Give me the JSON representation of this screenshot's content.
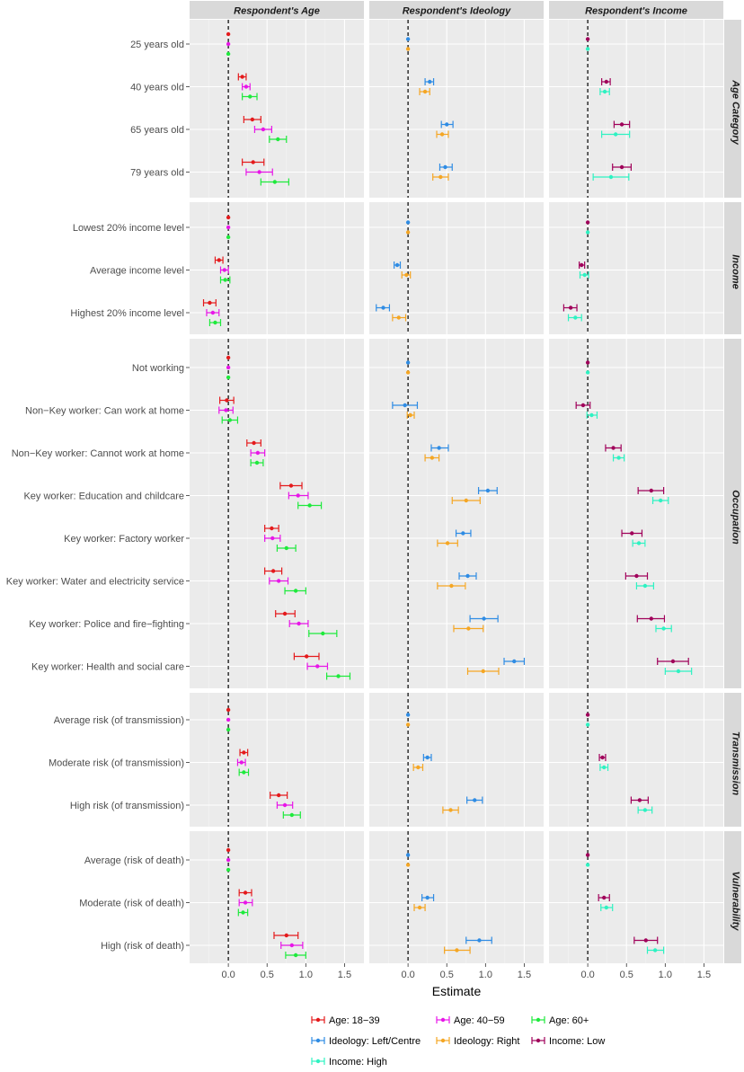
{
  "chart_data": {
    "type": "scatter",
    "subtype": "coefficient plot with horizontal error bars (faceted grid)",
    "xlabel": "Estimate",
    "x_ticks": [
      "0.0",
      "0.5",
      "1.0",
      "1.5"
    ],
    "x_tick_values": [
      0,
      0.5,
      1,
      1.5
    ],
    "xlim": [
      -0.5,
      1.75
    ],
    "columns": [
      "Respondent's Age",
      "Respondent's Ideology",
      "Respondent's Income"
    ],
    "reference_line": 0,
    "colors": {
      "Age: 18−39": "#e41a1c",
      "Age: 40−59": "#e816e8",
      "Age: 60+": "#1eea3c",
      "Ideology: Left/Centre": "#2f8ce4",
      "Ideology: Right": "#f5a623",
      "Income: High": "#2ef2c2",
      "Income: Low": "#a0005a"
    },
    "legend": {
      "position": "bottom",
      "entries": [
        "Age: 18−39",
        "Age: 40−59",
        "Age: 60+",
        "Ideology: Left/Centre",
        "Ideology: Right",
        "Income: Low",
        "Income: High"
      ]
    },
    "series_by_column": [
      [
        "Age: 18−39",
        "Age: 40−59",
        "Age: 60+"
      ],
      [
        "Ideology: Left/Centre",
        "Ideology: Right"
      ],
      [
        "Income: Low",
        "Income: High"
      ]
    ],
    "rows": [
      {
        "name": "Age Category",
        "levels": [
          "25 years old",
          "40 years old",
          "65 years old",
          "79 years old"
        ],
        "estimates": {
          "Age: 60+": [
            [
              0,
              0,
              0
            ],
            [
              0.28,
              0.18,
              0.37
            ],
            [
              0.64,
              0.53,
              0.75
            ],
            [
              0.6,
              0.42,
              0.78
            ]
          ],
          "Age: 40−59": [
            [
              0,
              0,
              0
            ],
            [
              0.23,
              0.18,
              0.28
            ],
            [
              0.45,
              0.34,
              0.56
            ],
            [
              0.4,
              0.23,
              0.57
            ]
          ],
          "Age: 18−39": [
            [
              0,
              0,
              0
            ],
            [
              0.18,
              0.13,
              0.23
            ],
            [
              0.31,
              0.2,
              0.42
            ],
            [
              0.32,
              0.18,
              0.46
            ]
          ],
          "Ideology: Right": [
            [
              0,
              0,
              0
            ],
            [
              0.22,
              0.15,
              0.28
            ],
            [
              0.44,
              0.37,
              0.52
            ],
            [
              0.42,
              0.32,
              0.52
            ]
          ],
          "Ideology: Left/Centre": [
            [
              0,
              0,
              0
            ],
            [
              0.28,
              0.22,
              0.33
            ],
            [
              0.5,
              0.43,
              0.58
            ],
            [
              0.48,
              0.41,
              0.57
            ]
          ],
          "Income: High": [
            [
              0,
              0,
              0
            ],
            [
              0.22,
              0.16,
              0.28
            ],
            [
              0.36,
              0.18,
              0.54
            ],
            [
              0.3,
              0.07,
              0.53
            ]
          ],
          "Income: Low": [
            [
              0,
              0,
              0
            ],
            [
              0.24,
              0.18,
              0.29
            ],
            [
              0.44,
              0.34,
              0.54
            ],
            [
              0.44,
              0.32,
              0.56
            ]
          ]
        }
      },
      {
        "name": "Income",
        "levels": [
          "Lowest 20% income level",
          "Average income level",
          "Highest 20% income level"
        ],
        "estimates": {
          "Age: 60+": [
            [
              0,
              0,
              0
            ],
            [
              -0.04,
              -0.1,
              0.02
            ],
            [
              -0.17,
              -0.24,
              -0.1
            ]
          ],
          "Age: 40−59": [
            [
              0,
              0,
              0
            ],
            [
              -0.05,
              -0.1,
              0
            ],
            [
              -0.2,
              -0.28,
              -0.12
            ]
          ],
          "Age: 18−39": [
            [
              0,
              0,
              0
            ],
            [
              -0.12,
              -0.17,
              -0.07
            ],
            [
              -0.24,
              -0.32,
              -0.16
            ]
          ],
          "Ideology: Right": [
            [
              0,
              0,
              0
            ],
            [
              -0.02,
              -0.08,
              0.03
            ],
            [
              -0.12,
              -0.2,
              -0.03
            ]
          ],
          "Ideology: Left/Centre": [
            [
              0,
              0,
              0
            ],
            [
              -0.14,
              -0.18,
              -0.1
            ],
            [
              -0.32,
              -0.41,
              -0.24
            ]
          ],
          "Income: High": [
            [
              0,
              0,
              0
            ],
            [
              -0.04,
              -0.1,
              0.01
            ],
            [
              -0.16,
              -0.25,
              -0.08
            ]
          ],
          "Income: Low": [
            [
              0,
              0,
              0
            ],
            [
              -0.08,
              -0.11,
              -0.04
            ],
            [
              -0.22,
              -0.31,
              -0.14
            ]
          ]
        }
      },
      {
        "name": "Occupation",
        "levels": [
          "Not working",
          "Non−Key worker: Can work at home",
          "Non−Key worker: Cannot work at home",
          "Key worker: Education and childcare",
          "Key worker: Factory worker",
          "Key worker: Water and electricity service",
          "Key worker: Police and fire−fighting",
          "Key worker: Health and social care"
        ],
        "estimates": {
          "Age: 60+": [
            [
              0,
              0,
              0
            ],
            [
              0.02,
              -0.08,
              0.12
            ],
            [
              0.37,
              0.29,
              0.45
            ],
            [
              1.05,
              0.9,
              1.2
            ],
            [
              0.75,
              0.63,
              0.87
            ],
            [
              0.87,
              0.73,
              1
            ],
            [
              1.22,
              1.04,
              1.4
            ],
            [
              1.42,
              1.27,
              1.57
            ]
          ],
          "Age: 40−59": [
            [
              0,
              0,
              0
            ],
            [
              -0.03,
              -0.12,
              0.06
            ],
            [
              0.38,
              0.29,
              0.47
            ],
            [
              0.9,
              0.78,
              1.03
            ],
            [
              0.57,
              0.47,
              0.67
            ],
            [
              0.65,
              0.53,
              0.77
            ],
            [
              0.91,
              0.79,
              1.03
            ],
            [
              1.15,
              1.02,
              1.28
            ]
          ],
          "Age: 18−39": [
            [
              0,
              0,
              0
            ],
            [
              -0.02,
              -0.11,
              0.07
            ],
            [
              0.33,
              0.24,
              0.42
            ],
            [
              0.81,
              0.67,
              0.95
            ],
            [
              0.56,
              0.47,
              0.65
            ],
            [
              0.58,
              0.47,
              0.69
            ],
            [
              0.73,
              0.61,
              0.86
            ],
            [
              1.01,
              0.85,
              1.17
            ]
          ],
          "Ideology: Right": [
            [
              0,
              0,
              0
            ],
            [
              0.03,
              -0.01,
              0.08
            ],
            [
              0.31,
              0.22,
              0.4
            ],
            [
              0.75,
              0.57,
              0.93
            ],
            [
              0.51,
              0.38,
              0.64
            ],
            [
              0.56,
              0.38,
              0.74
            ],
            [
              0.78,
              0.59,
              0.97
            ],
            [
              0.97,
              0.77,
              1.17
            ]
          ],
          "Ideology: Left/Centre": [
            [
              0,
              0,
              0
            ],
            [
              -0.04,
              -0.2,
              0.12
            ],
            [
              0.4,
              0.3,
              0.52
            ],
            [
              1.03,
              0.91,
              1.15
            ],
            [
              0.71,
              0.62,
              0.81
            ],
            [
              0.77,
              0.66,
              0.88
            ],
            [
              0.98,
              0.8,
              1.16
            ],
            [
              1.37,
              1.24,
              1.5
            ]
          ],
          "Income: High": [
            [
              0,
              0,
              0
            ],
            [
              0.05,
              -0.01,
              0.12
            ],
            [
              0.4,
              0.33,
              0.47
            ],
            [
              0.94,
              0.84,
              1.04
            ],
            [
              0.66,
              0.58,
              0.74
            ],
            [
              0.74,
              0.63,
              0.85
            ],
            [
              0.98,
              0.88,
              1.08
            ],
            [
              1.17,
              1,
              1.34
            ]
          ],
          "Income: Low": [
            [
              0,
              0,
              0
            ],
            [
              -0.06,
              -0.15,
              0.03
            ],
            [
              0.33,
              0.23,
              0.43
            ],
            [
              0.82,
              0.65,
              0.98
            ],
            [
              0.57,
              0.44,
              0.7
            ],
            [
              0.63,
              0.49,
              0.77
            ],
            [
              0.82,
              0.64,
              0.99
            ],
            [
              1.1,
              0.9,
              1.3
            ]
          ]
        }
      },
      {
        "name": "Transmission",
        "levels": [
          "Average risk (of transmission)",
          "Moderate risk (of transmission)",
          "High risk (of transmission)"
        ],
        "estimates": {
          "Age: 60+": [
            [
              0,
              0,
              0
            ],
            [
              0.2,
              0.14,
              0.26
            ],
            [
              0.82,
              0.71,
              0.93
            ]
          ],
          "Age: 40−59": [
            [
              0,
              0,
              0
            ],
            [
              0.17,
              0.12,
              0.22
            ],
            [
              0.73,
              0.63,
              0.83
            ]
          ],
          "Age: 18−39": [
            [
              0,
              0,
              0
            ],
            [
              0.2,
              0.15,
              0.25
            ],
            [
              0.65,
              0.54,
              0.76
            ]
          ],
          "Ideology: Right": [
            [
              0,
              0,
              0
            ],
            [
              0.13,
              0.07,
              0.19
            ],
            [
              0.55,
              0.45,
              0.65
            ]
          ],
          "Ideology: Left/Centre": [
            [
              0,
              0,
              0
            ],
            [
              0.25,
              0.2,
              0.3
            ],
            [
              0.86,
              0.76,
              0.96
            ]
          ],
          "Income: High": [
            [
              0,
              0,
              0
            ],
            [
              0.21,
              0.16,
              0.26
            ],
            [
              0.74,
              0.65,
              0.83
            ]
          ],
          "Income: Low": [
            [
              0,
              0,
              0
            ],
            [
              0.19,
              0.15,
              0.23
            ],
            [
              0.67,
              0.56,
              0.78
            ]
          ]
        }
      },
      {
        "name": "Vulnerability",
        "levels": [
          "Average (risk of death)",
          "Moderate (risk of death)",
          "High (risk of death)"
        ],
        "estimates": {
          "Age: 60+": [
            [
              0,
              0,
              0
            ],
            [
              0.19,
              0.13,
              0.25
            ],
            [
              0.87,
              0.74,
              1
            ]
          ],
          "Age: 40−59": [
            [
              0,
              0,
              0
            ],
            [
              0.22,
              0.14,
              0.31
            ],
            [
              0.82,
              0.68,
              0.96
            ]
          ],
          "Age: 18−39": [
            [
              0,
              0,
              0
            ],
            [
              0.22,
              0.14,
              0.3
            ],
            [
              0.75,
              0.59,
              0.9
            ]
          ],
          "Ideology: Right": [
            [
              0,
              0,
              0
            ],
            [
              0.15,
              0.08,
              0.22
            ],
            [
              0.63,
              0.47,
              0.8
            ]
          ],
          "Ideology: Left/Centre": [
            [
              0,
              0,
              0
            ],
            [
              0.25,
              0.18,
              0.33
            ],
            [
              0.92,
              0.75,
              1.08
            ]
          ],
          "Income: High": [
            [
              0,
              0,
              0
            ],
            [
              0.24,
              0.17,
              0.32
            ],
            [
              0.87,
              0.77,
              0.98
            ]
          ],
          "Income: Low": [
            [
              0,
              0,
              0
            ],
            [
              0.21,
              0.14,
              0.28
            ],
            [
              0.75,
              0.6,
              0.9
            ]
          ]
        }
      }
    ]
  }
}
